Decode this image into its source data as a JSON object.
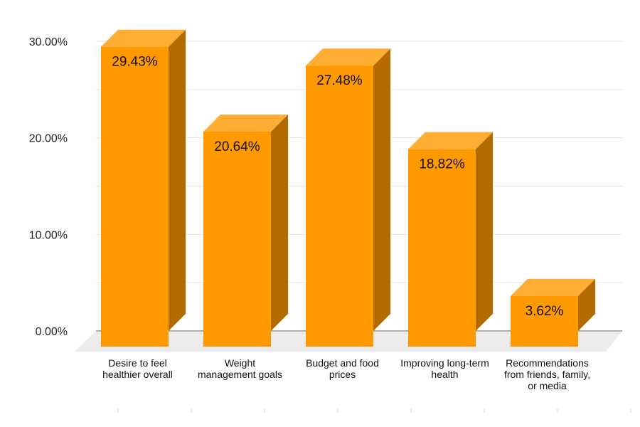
{
  "chart_data": {
    "type": "bar",
    "title": "",
    "xlabel": "",
    "ylabel": "",
    "categories": [
      [
        "Desire to feel",
        "healthier overall"
      ],
      [
        "Weight",
        "management goals"
      ],
      [
        "Budget and food",
        "prices"
      ],
      [
        "Improving long-term",
        "health"
      ],
      [
        "Recommendations",
        "from friends, family,",
        "or media"
      ]
    ],
    "values": [
      29.43,
      20.64,
      27.48,
      18.82,
      3.62
    ],
    "data_labels": [
      "29.43%",
      "20.64%",
      "27.48%",
      "18.82%",
      "3.62%"
    ],
    "y_ticks": [
      0,
      10,
      20,
      30
    ],
    "y_tick_labels": [
      "0.00%",
      "10.00%",
      "20.00%",
      "30.00%"
    ],
    "ylim": [
      0,
      30
    ],
    "grid": true,
    "legend": "none",
    "colors": {
      "bar_front": "#ff9900",
      "bar_top": "#ffad33",
      "bar_side": "#b36b00",
      "floor": "#ececec",
      "grid": "#e2e2e2",
      "axis_line": "#9a9a9a"
    }
  }
}
